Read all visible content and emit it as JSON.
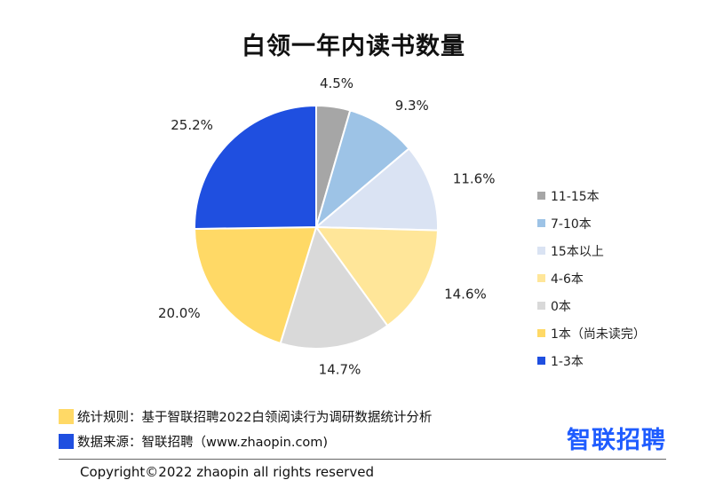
{
  "chart_data": {
    "type": "pie",
    "title": "白领一年内读书数量",
    "slices": [
      {
        "label": "11-15本",
        "value": 4.5,
        "display": "4.5%",
        "color": "#a6a6a6"
      },
      {
        "label": "7-10本",
        "value": 9.3,
        "display": "9.3%",
        "color": "#9dc3e6"
      },
      {
        "label": "15本以上",
        "value": 11.6,
        "display": "11.6%",
        "color": "#dae3f3"
      },
      {
        "label": "4-6本",
        "value": 14.6,
        "display": "14.6%",
        "color": "#ffe699"
      },
      {
        "label": "0本",
        "value": 14.7,
        "display": "14.7%",
        "color": "#d9d9d9"
      },
      {
        "label": "1本（尚未读完）",
        "value": 20.0,
        "display": "20.0%",
        "color": "#ffd966"
      },
      {
        "label": "1-3本",
        "value": 25.2,
        "display": "25.2%",
        "color": "#1f4fe0"
      }
    ],
    "legend_position": "right"
  },
  "notes": {
    "rule": "统计规则：基于智联招聘2022白领阅读行为调研数据统计分析",
    "rule_color": "#ffd966",
    "source": "数据来源：智联招聘（www.zhaopin.com)",
    "source_color": "#1f4fe0"
  },
  "logo": {
    "text": "智联招聘",
    "color": "#1f5cff"
  },
  "footer": {
    "copyright": "Copyright©2022 zhaopin all rights reserved"
  }
}
